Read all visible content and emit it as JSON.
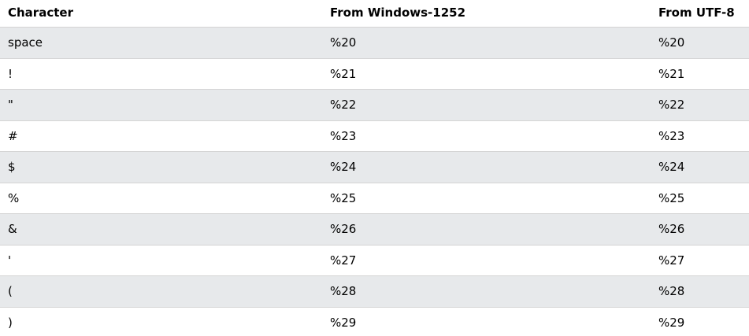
{
  "table": {
    "headers": [
      "Character",
      "From Windows-1252",
      "From UTF-8"
    ],
    "rows": [
      [
        "space",
        "%20",
        "%20"
      ],
      [
        "!",
        "%21",
        "%21"
      ],
      [
        "\"",
        "%22",
        "%22"
      ],
      [
        "#",
        "%23",
        "%23"
      ],
      [
        "$",
        "%24",
        "%24"
      ],
      [
        "%",
        "%25",
        "%25"
      ],
      [
        "&",
        "%26",
        "%26"
      ],
      [
        "'",
        "%27",
        "%27"
      ],
      [
        "(",
        "%28",
        "%28"
      ],
      [
        ")",
        "%29",
        "%29"
      ]
    ]
  },
  "colors": {
    "shade_row": "#e7e9eb",
    "border": "#d4d4d4",
    "text": "#000000"
  }
}
